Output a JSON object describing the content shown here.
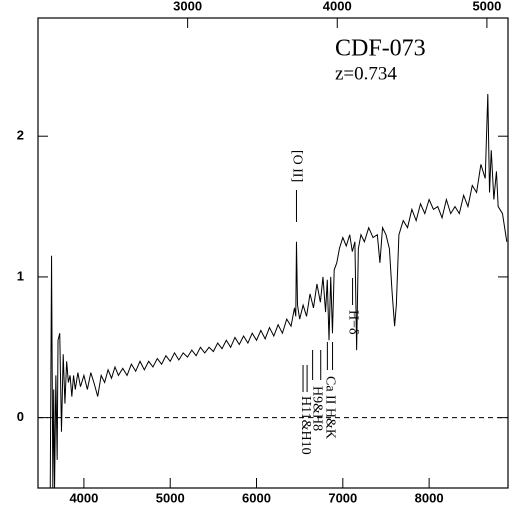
{
  "chart_data": {
    "type": "line",
    "title": "CDF-073",
    "subtitle": "z=0.734",
    "x": [
      3610,
      3625,
      3640,
      3650,
      3660,
      3675,
      3690,
      3700,
      3720,
      3740,
      3760,
      3780,
      3800,
      3820,
      3840,
      3860,
      3880,
      3900,
      3930,
      3960,
      4000,
      4040,
      4080,
      4120,
      4160,
      4200,
      4240,
      4280,
      4320,
      4360,
      4400,
      4450,
      4500,
      4550,
      4600,
      4650,
      4700,
      4750,
      4800,
      4850,
      4900,
      4950,
      5000,
      5050,
      5100,
      5150,
      5200,
      5250,
      5300,
      5350,
      5400,
      5450,
      5500,
      5550,
      5600,
      5650,
      5700,
      5750,
      5800,
      5850,
      5900,
      5950,
      6000,
      6050,
      6100,
      6150,
      6200,
      6250,
      6300,
      6350,
      6400,
      6440,
      6455,
      6463,
      6475,
      6500,
      6540,
      6580,
      6620,
      6660,
      6700,
      6740,
      6770,
      6800,
      6820,
      6840,
      6860,
      6880,
      6900,
      6930,
      6960,
      7000,
      7040,
      7080,
      7110,
      7140,
      7160,
      7180,
      7210,
      7250,
      7300,
      7350,
      7400,
      7430,
      7460,
      7500,
      7540,
      7570,
      7600,
      7620,
      7650,
      7700,
      7750,
      7800,
      7850,
      7900,
      7950,
      8000,
      8050,
      8100,
      8150,
      8200,
      8250,
      8300,
      8350,
      8400,
      8450,
      8500,
      8550,
      8600,
      8650,
      8680,
      8700,
      8720,
      8750,
      8780,
      8800,
      8850,
      8900
    ],
    "values": [
      -0.5,
      1.15,
      -0.5,
      0.2,
      -0.5,
      0.3,
      -0.3,
      0.55,
      0.6,
      -0.1,
      0.45,
      0.1,
      0.4,
      0.25,
      0.3,
      0.15,
      0.3,
      0.2,
      0.32,
      0.22,
      0.3,
      0.2,
      0.32,
      0.24,
      0.15,
      0.3,
      0.25,
      0.34,
      0.28,
      0.36,
      0.3,
      0.35,
      0.3,
      0.38,
      0.33,
      0.4,
      0.34,
      0.4,
      0.36,
      0.42,
      0.38,
      0.44,
      0.4,
      0.46,
      0.41,
      0.46,
      0.43,
      0.48,
      0.44,
      0.5,
      0.46,
      0.5,
      0.47,
      0.53,
      0.49,
      0.55,
      0.5,
      0.57,
      0.52,
      0.58,
      0.53,
      0.6,
      0.55,
      0.62,
      0.56,
      0.64,
      0.58,
      0.66,
      0.6,
      0.7,
      0.65,
      0.78,
      0.72,
      1.25,
      0.8,
      0.7,
      0.8,
      0.72,
      0.88,
      0.78,
      0.95,
      0.82,
      1.0,
      0.75,
      0.98,
      0.55,
      1.0,
      0.6,
      1.05,
      1.1,
      1.2,
      1.28,
      1.22,
      1.3,
      1.18,
      1.25,
      0.48,
      1.2,
      1.3,
      1.25,
      1.35,
      1.28,
      1.3,
      1.1,
      1.35,
      1.3,
      1.2,
      0.9,
      0.65,
      0.8,
      1.3,
      1.4,
      1.35,
      1.48,
      1.4,
      1.52,
      1.45,
      1.55,
      1.48,
      1.5,
      1.42,
      1.55,
      1.45,
      1.5,
      1.45,
      1.58,
      1.5,
      1.65,
      1.6,
      1.8,
      1.7,
      2.3,
      1.6,
      1.9,
      1.55,
      1.75,
      1.5,
      1.45,
      1.25
    ],
    "color": "#000000",
    "xlim": [
      3468,
      8914
    ],
    "xticks": [
      4000,
      5000,
      6000,
      7000,
      8000
    ],
    "x2lim": [
      2000,
      5141
    ],
    "x2ticks": [
      3000,
      4000,
      5000
    ],
    "ylim": [
      -0.5,
      2.84
    ],
    "yticks": [
      0,
      1,
      2
    ],
    "reference_line": 0,
    "annotations": [
      {
        "text": "[O II]",
        "x": [
          6463
        ]
      },
      {
        "text": "H11&H10",
        "x": [
          6539,
          6586
        ]
      },
      {
        "text": "H9&H8",
        "x": [
          6650,
          6744
        ]
      },
      {
        "text": "Ca II H&K",
        "x": [
          6821,
          6881
        ]
      },
      {
        "text": "H−δ",
        "x": [
          7113
        ]
      }
    ]
  }
}
